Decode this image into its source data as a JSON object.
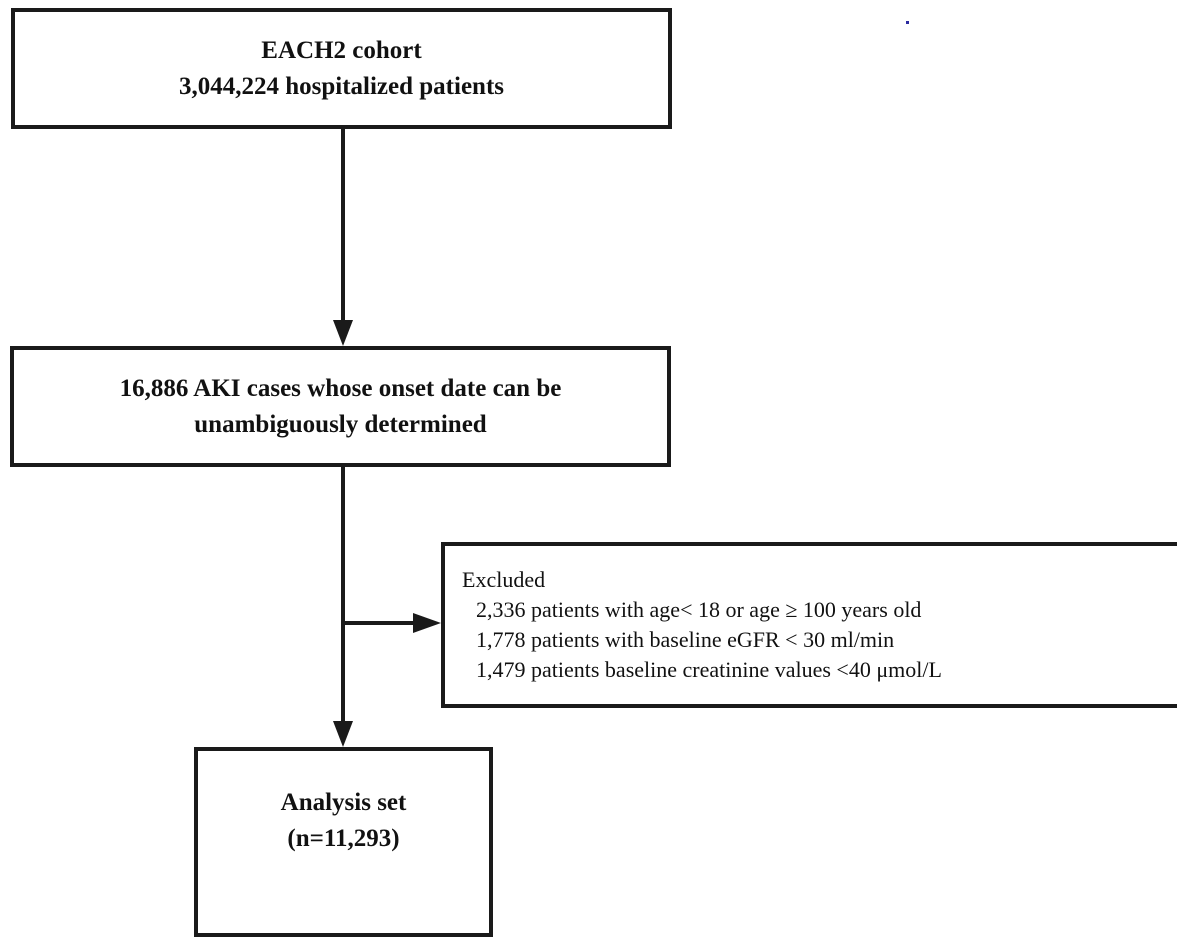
{
  "nodes": {
    "cohort": {
      "lines": [
        "EACH2 cohort",
        "3,044,224 hospitalized patients"
      ]
    },
    "aki": {
      "lines": [
        "16,886 AKI cases whose onset date can be",
        "unambiguously determined"
      ]
    },
    "excluded": {
      "title": "Excluded",
      "items": [
        "2,336 patients with age< 18 or age ≥ 100 years old",
        "1,778 patients with baseline eGFR < 30 ml/min",
        "1,479 patients baseline creatinine values <40 μmol/L"
      ]
    },
    "analysis": {
      "lines": [
        "Analysis set",
        "(n=11,293)"
      ]
    }
  },
  "edges": [
    {
      "from": "cohort",
      "to": "aki"
    },
    {
      "from": "aki",
      "to": "analysis"
    },
    {
      "from": "aki",
      "to": "excluded"
    }
  ],
  "colors": {
    "stroke": "#1a1a1a",
    "text": "#111111",
    "stray_dot": "#2a2aa0"
  }
}
